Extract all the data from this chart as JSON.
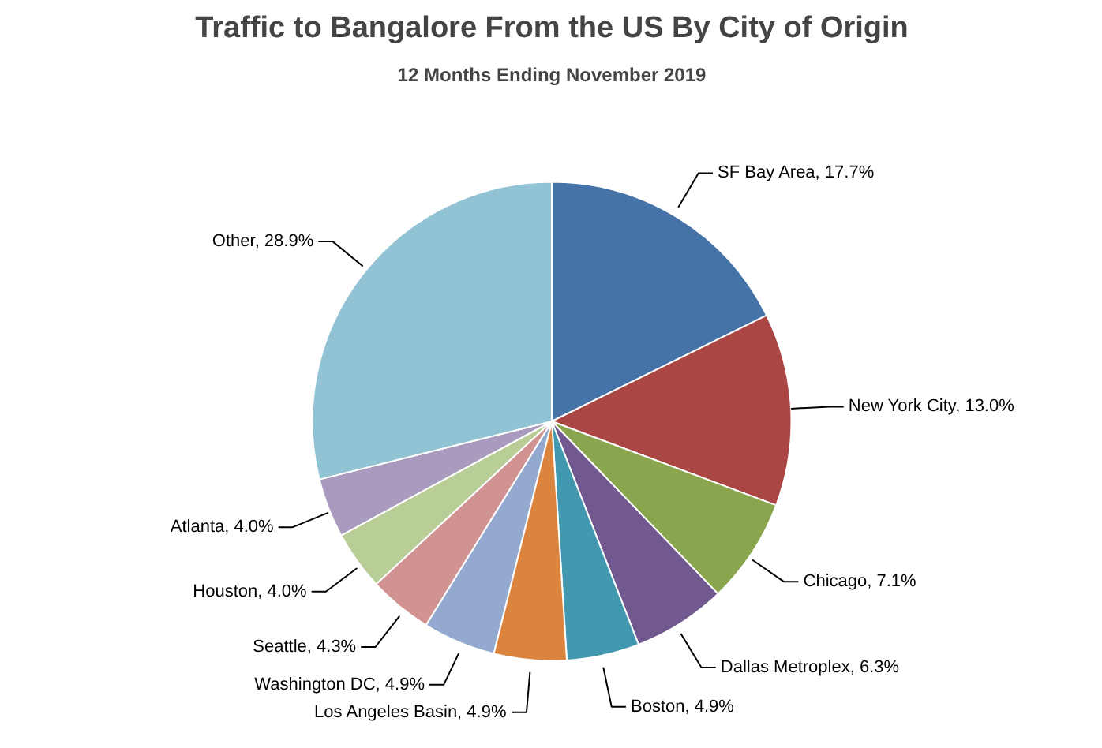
{
  "chart_data": {
    "type": "pie",
    "title": "Traffic to Bangalore From the US By City of Origin",
    "subtitle": "12 Months Ending November 2019",
    "categories": [
      "SF Bay Area",
      "New York City",
      "Chicago",
      "Dallas Metroplex",
      "Boston",
      "Los Angeles Basin",
      "Washington DC",
      "Seattle",
      "Houston",
      "Atlanta",
      "Other"
    ],
    "values": [
      17.7,
      13.0,
      7.1,
      6.3,
      4.9,
      4.9,
      4.9,
      4.3,
      4.0,
      4.0,
      28.9
    ],
    "value_labels": [
      "17.7%",
      "13.0%",
      "7.1%",
      "6.3%",
      "4.9%",
      "4.9%",
      "4.9%",
      "4.3%",
      "4.0%",
      "4.0%",
      "28.9%"
    ],
    "colors": [
      "#4572a7",
      "#aa4643",
      "#89a54e",
      "#71588f",
      "#4198af",
      "#db843d",
      "#93a9cf",
      "#d19392",
      "#b9cd96",
      "#a99bbd",
      "#92c3d4"
    ]
  }
}
